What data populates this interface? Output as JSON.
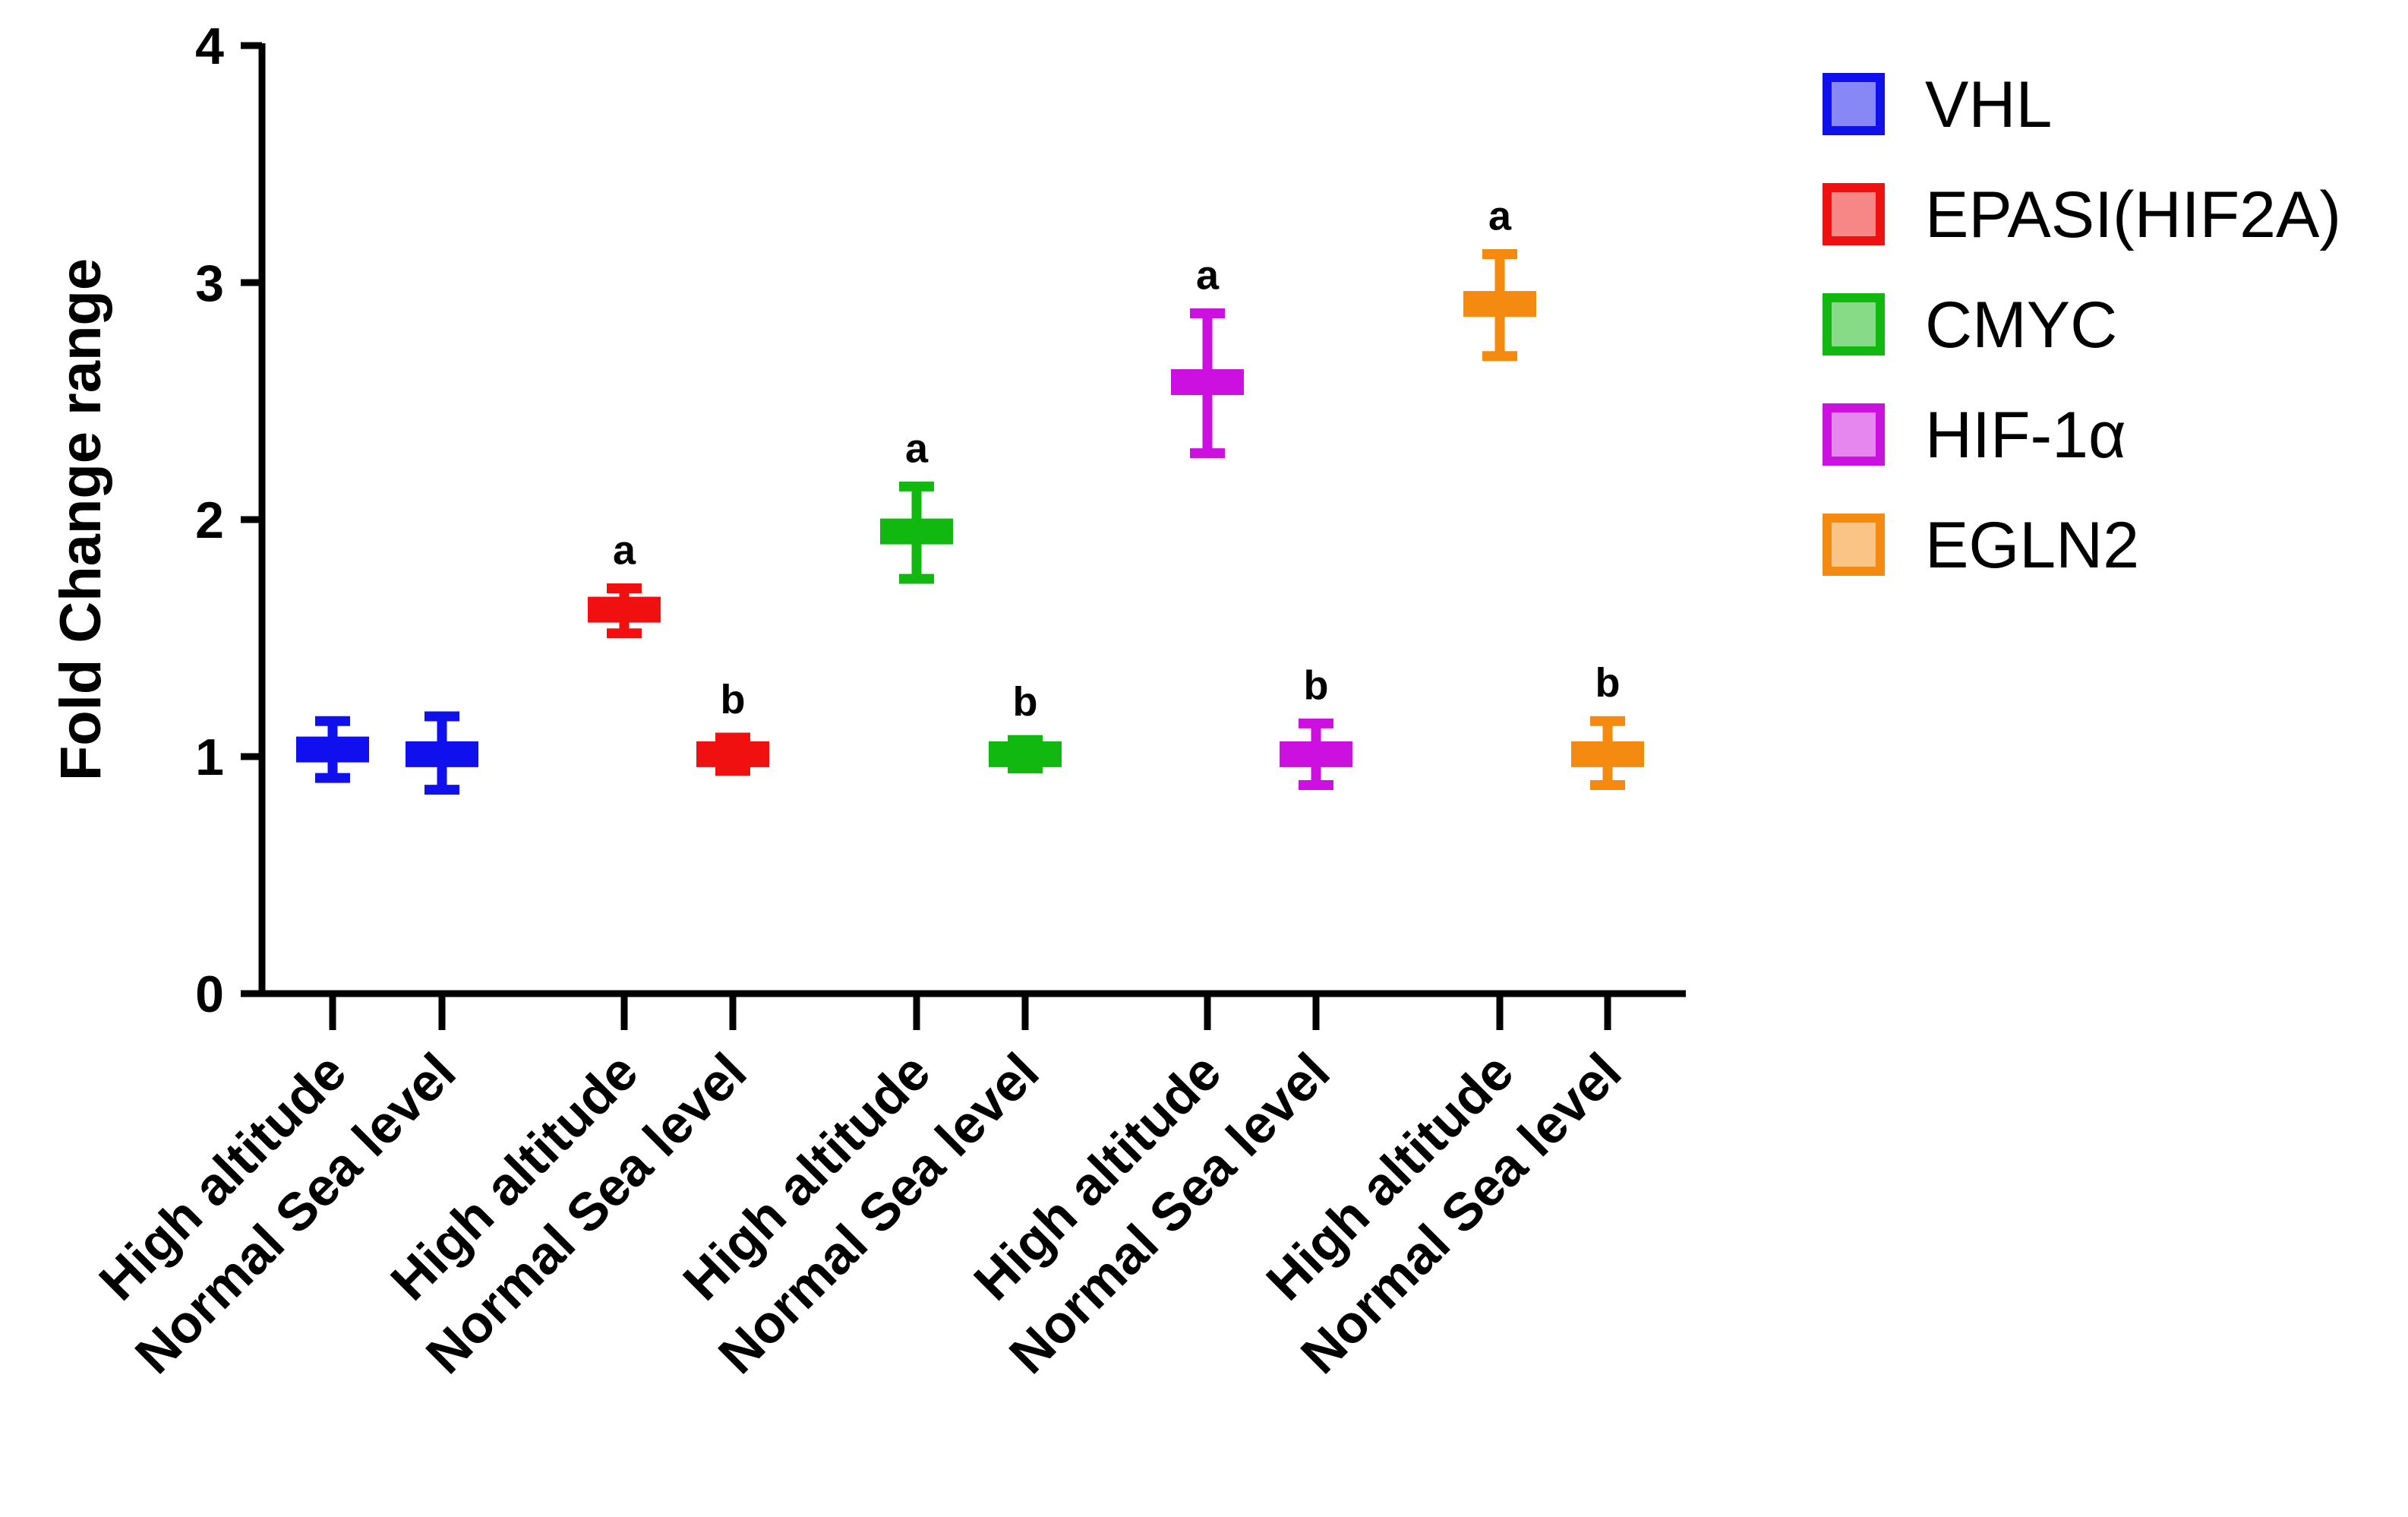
{
  "chart_data": {
    "type": "scatter",
    "title": "",
    "xlabel": "",
    "ylabel": "Fold Change range",
    "ylim": [
      0,
      4
    ],
    "yticks": [
      "0",
      "1",
      "2",
      "3",
      "4"
    ],
    "grid": false,
    "legend_position": "top-right",
    "series": [
      {
        "name": "VHL",
        "color": "#1010ee",
        "points": [
          {
            "category": "High altitude",
            "mean": 1.03,
            "low": 0.91,
            "high": 1.15,
            "label": ""
          },
          {
            "category": "Normal Sea level",
            "mean": 1.01,
            "low": 0.86,
            "high": 1.17,
            "label": ""
          }
        ]
      },
      {
        "name": "EPASI(HIF2A)",
        "color": "#f01010",
        "points": [
          {
            "category": "High altitude",
            "mean": 1.62,
            "low": 1.52,
            "high": 1.71,
            "label": "a"
          },
          {
            "category": "Normal Sea level",
            "mean": 1.01,
            "low": 0.94,
            "high": 1.08,
            "label": "b"
          }
        ]
      },
      {
        "name": "CMYC",
        "color": "#10b810",
        "points": [
          {
            "category": "High altitude",
            "mean": 1.95,
            "low": 1.75,
            "high": 2.14,
            "label": "a"
          },
          {
            "category": "Normal Sea level",
            "mean": 1.01,
            "low": 0.95,
            "high": 1.07,
            "label": "b"
          }
        ]
      },
      {
        "name": "HIF-1α",
        "color": "#cc10e0",
        "points": [
          {
            "category": "High altitude",
            "mean": 2.58,
            "low": 2.28,
            "high": 2.87,
            "label": "a"
          },
          {
            "category": "Normal Sea level",
            "mean": 1.01,
            "low": 0.88,
            "high": 1.14,
            "label": "b"
          }
        ]
      },
      {
        "name": "EGLN2",
        "color": "#f58a10",
        "points": [
          {
            "category": "High altitude",
            "mean": 2.91,
            "low": 2.69,
            "high": 3.12,
            "label": "a"
          },
          {
            "category": "Normal Sea level",
            "mean": 1.01,
            "low": 0.88,
            "high": 1.15,
            "label": "b"
          }
        ]
      }
    ]
  }
}
